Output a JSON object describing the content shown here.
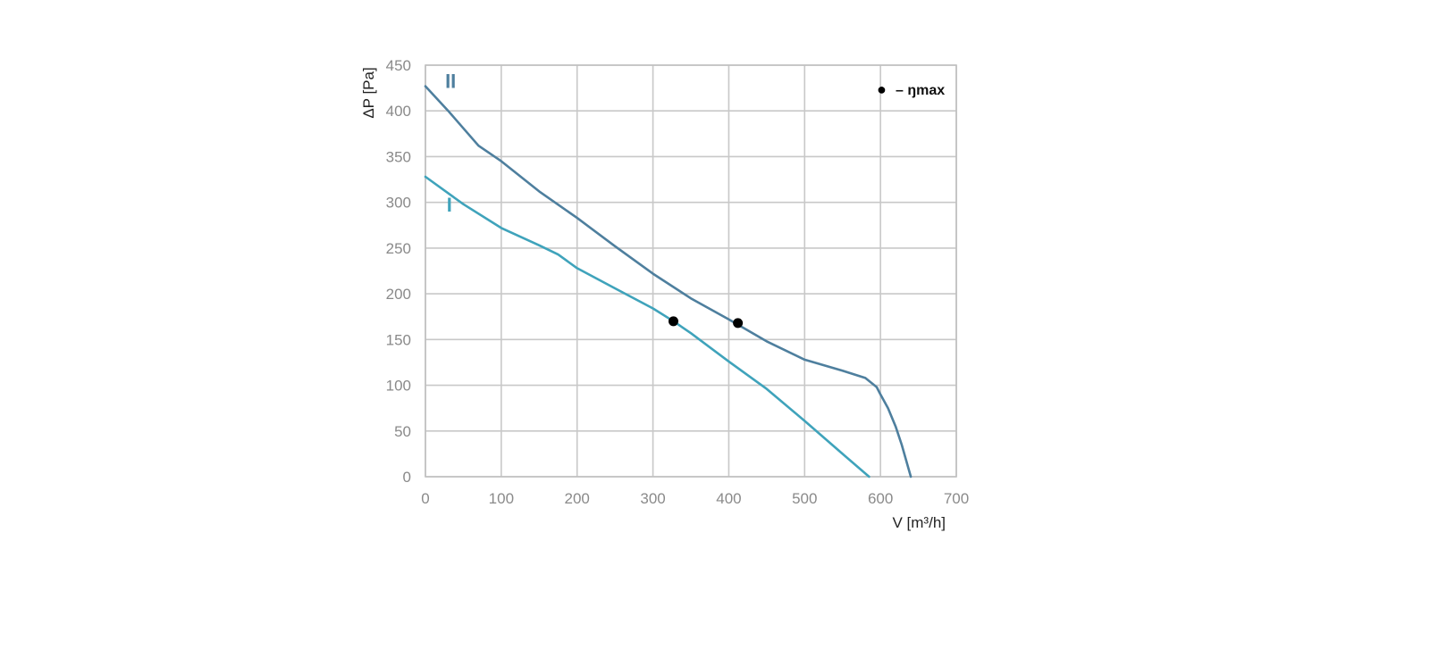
{
  "chart_data": {
    "type": "line",
    "xlabel": "V [m³/h]",
    "ylabel": "ΔP [Pa]",
    "xlim": [
      0,
      700
    ],
    "ylim": [
      0,
      450
    ],
    "xticks": [
      0,
      100,
      200,
      300,
      400,
      500,
      600,
      700
    ],
    "yticks": [
      0,
      50,
      100,
      150,
      200,
      250,
      300,
      350,
      400,
      450
    ],
    "grid": true,
    "legend": {
      "position": "top-right",
      "marker": "●",
      "text": "– ŋmax"
    },
    "series": [
      {
        "name": "II",
        "color": "#4e7f9e",
        "points": [
          [
            0,
            427
          ],
          [
            30,
            400
          ],
          [
            70,
            362
          ],
          [
            100,
            345
          ],
          [
            150,
            312
          ],
          [
            200,
            283
          ],
          [
            250,
            252
          ],
          [
            300,
            222
          ],
          [
            350,
            195
          ],
          [
            400,
            172
          ],
          [
            450,
            148
          ],
          [
            500,
            128
          ],
          [
            550,
            116
          ],
          [
            580,
            108
          ],
          [
            595,
            98
          ],
          [
            600,
            90
          ],
          [
            610,
            75
          ],
          [
            620,
            55
          ],
          [
            628,
            35
          ],
          [
            640,
            0
          ]
        ],
        "max_efficiency_point": [
          412,
          168
        ]
      },
      {
        "name": "I",
        "color": "#3fa3bb",
        "points": [
          [
            0,
            328
          ],
          [
            50,
            298
          ],
          [
            100,
            272
          ],
          [
            150,
            253
          ],
          [
            175,
            243
          ],
          [
            200,
            228
          ],
          [
            250,
            206
          ],
          [
            300,
            184
          ],
          [
            327,
            170
          ],
          [
            350,
            157
          ],
          [
            400,
            126
          ],
          [
            450,
            96
          ],
          [
            500,
            61
          ],
          [
            550,
            25
          ],
          [
            585,
            0
          ]
        ],
        "max_efficiency_point": [
          327,
          170
        ]
      }
    ]
  }
}
